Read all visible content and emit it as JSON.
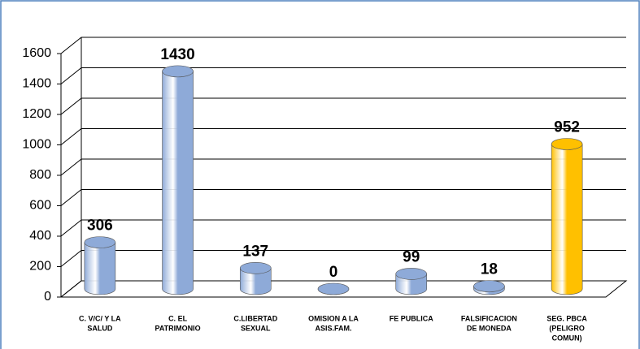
{
  "chart_data": {
    "type": "bar",
    "categories": [
      [
        "C. V/C/ Y LA",
        "SALUD"
      ],
      [
        "C. EL",
        "PATRIMONIO"
      ],
      [
        "C.LIBERTAD",
        "SEXUAL"
      ],
      [
        "OMISION A LA",
        "ASIS.FAM."
      ],
      [
        "FE PUBLICA"
      ],
      [
        "FALSIFICACION",
        "DE MONEDA"
      ],
      [
        "SEG. PBCA",
        "(PELIGRO",
        "COMUN)"
      ]
    ],
    "values": [
      306,
      1430,
      137,
      0,
      99,
      18,
      952
    ],
    "colors": [
      "#8eaad8",
      "#8eaad8",
      "#8eaad8",
      "#8eaad8",
      "#8eaad8",
      "#8eaad8",
      "#ffc000"
    ],
    "ylim": [
      0,
      1600
    ],
    "yticks": [
      0,
      200,
      400,
      600,
      800,
      1000,
      1200,
      1400,
      1600
    ],
    "grid": true
  }
}
